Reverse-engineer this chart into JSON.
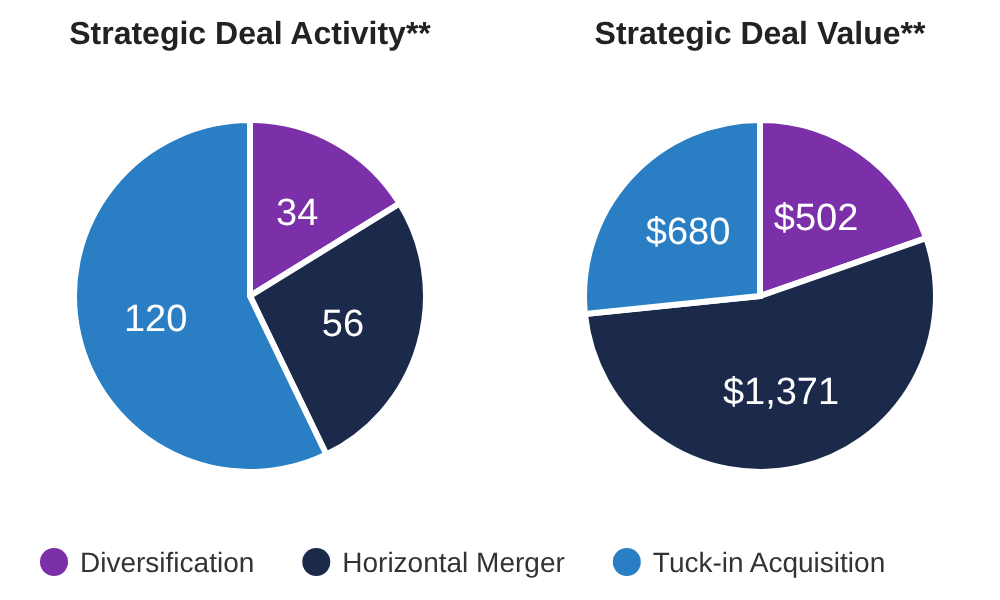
{
  "chart_data": [
    {
      "type": "pie",
      "title": "Strategic Deal Activity**",
      "categories": [
        "Diversification",
        "Horizontal Merger",
        "Tuck-in Acquisition"
      ],
      "values": [
        34,
        56,
        120
      ],
      "colors": [
        "#7b2fa8",
        "#1b2a4a",
        "#2a7fc4"
      ],
      "data_labels": true,
      "legend": "bottom"
    },
    {
      "type": "pie",
      "title": "Strategic Deal Value**",
      "categories": [
        null,
        null,
        null
      ],
      "values": [
        502,
        1371,
        680
      ],
      "value_labels": [
        "$502",
        "$1,371",
        "$680"
      ],
      "colors": [
        "#7b2fa8",
        "#1b2a4a",
        "#2a7fc4"
      ]
    }
  ]
}
